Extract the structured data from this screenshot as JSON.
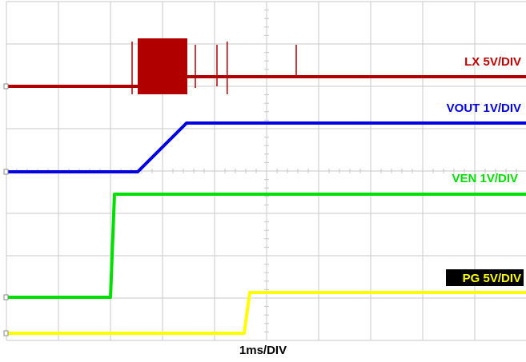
{
  "chart_data": {
    "type": "line",
    "x_unit": "ms",
    "xlim": [
      0,
      10
    ],
    "ylim": [
      0,
      8
    ],
    "xlabel": "1ms/DIV",
    "grid": true,
    "background": "#ffffff",
    "grid_color": "#c8c8c8",
    "series": [
      {
        "name": "LX 5V/DIV",
        "color": "#b00000",
        "label_color": "#c00000",
        "label_bg": "",
        "baseline_div": 6.2,
        "x": [
          0,
          5.15,
          5.15,
          6.8,
          6.8,
          6.85,
          6.85,
          9.8,
          9.8,
          10
        ],
        "y": [
          0,
          0,
          1.0,
          1.0,
          0,
          0,
          0.3,
          0.3,
          0.3,
          0.3
        ]
      },
      {
        "name": "VOUT 1V/DIV",
        "color": "#0000e0",
        "label_color": "#0000e0",
        "label_bg": "",
        "baseline_div": 4.2,
        "x": [
          0,
          5.05,
          6.85,
          20
        ],
        "y": [
          0,
          0,
          1.2,
          1.2
        ]
      },
      {
        "name": "VEN 1V/DIV",
        "color": "#00e000",
        "label_color": "#00dd00",
        "label_bg": "",
        "baseline_div": 0.9,
        "x": [
          0,
          4.15,
          4.3,
          20
        ],
        "y": [
          0,
          0,
          2.55,
          2.55
        ]
      },
      {
        "name": "PG 5V/DIV",
        "color": "#ffff00",
        "label_color": "#ffff00",
        "label_bg": "#000000",
        "baseline_div": 0.05,
        "x": [
          0,
          9.05,
          9.2,
          20
        ],
        "y": [
          0,
          0,
          1.05,
          1.05
        ]
      }
    ],
    "lx_spikes_ms": [
      7.15,
      7.95,
      10.75
    ]
  }
}
